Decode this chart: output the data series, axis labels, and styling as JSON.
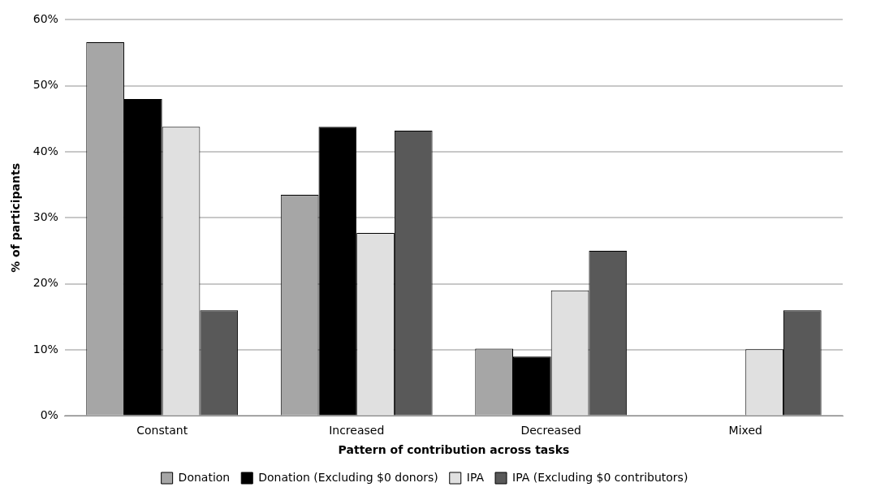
{
  "chart_data": {
    "type": "bar",
    "xlabel": "Pattern of contribution across tasks",
    "ylabel": "% of participants",
    "categories": [
      "Constant",
      "Increased",
      "Decreased",
      "Mixed"
    ],
    "series": [
      {
        "name": "Donation",
        "color": "#a6a6a6",
        "values": [
          56.6,
          33.5,
          10.2,
          0
        ]
      },
      {
        "name": "Donation (Excluding $0 donors)",
        "color": "#000000",
        "values": [
          48,
          43.8,
          9,
          0
        ]
      },
      {
        "name": "IPA",
        "color": "#e0e0e0",
        "values": [
          43.8,
          27.7,
          19,
          10.1
        ]
      },
      {
        "name": "IPA (Excluding $0 contributors)",
        "color": "#595959",
        "values": [
          16,
          43.2,
          25,
          16
        ]
      }
    ],
    "ylim": [
      0,
      60
    ],
    "yticks": [
      {
        "value": 0,
        "label": "0%"
      },
      {
        "value": 10,
        "label": "10%"
      },
      {
        "value": 20,
        "label": "20%"
      },
      {
        "value": 30,
        "label": "30%"
      },
      {
        "value": 40,
        "label": "40%"
      },
      {
        "value": 50,
        "label": "50%"
      },
      {
        "value": 60,
        "label": "60%"
      }
    ],
    "grid": "y",
    "legend": "bottom"
  }
}
